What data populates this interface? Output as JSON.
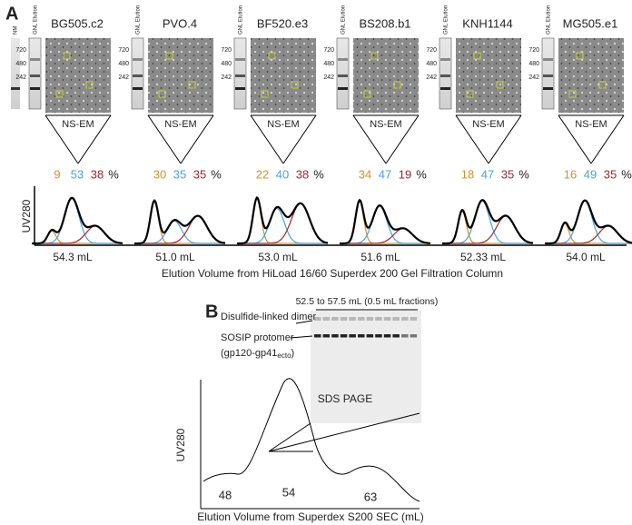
{
  "panel_a": {
    "label": "A",
    "lane_nm": "NM",
    "lane_gnl": "GNL Elution",
    "ladder": [
      "720",
      "480",
      "242"
    ],
    "method": "NS-EM",
    "percent_unit": "%",
    "y_axis": "UV280",
    "x_axis": "Elution Volume from HiLoad 16/60 Superdex 200 Gel Filtration Column",
    "samples": [
      {
        "name": "BG505.c2",
        "fractions": [
          9,
          53,
          38
        ],
        "volume": "54.3 mL"
      },
      {
        "name": "PVO.4",
        "fractions": [
          30,
          35,
          35
        ],
        "volume": "51.0 mL"
      },
      {
        "name": "BF520.e3",
        "fractions": [
          22,
          40,
          38
        ],
        "volume": "53.0 mL"
      },
      {
        "name": "BS208.b1",
        "fractions": [
          34,
          47,
          19
        ],
        "volume": "51.6 mL"
      },
      {
        "name": "KNH1144",
        "fractions": [
          18,
          47,
          35
        ],
        "volume": "52.33 mL"
      },
      {
        "name": "MG505.e1",
        "fractions": [
          16,
          49,
          35
        ],
        "volume": "54.0 mL"
      }
    ]
  },
  "panel_b": {
    "label": "B",
    "fraction_range": "52.5 to 57.5 mL (0.5 mL fractions)",
    "band_dimer": "Disulfide-linked dimer",
    "band_protomer": "SOSIP protomer",
    "subunit": "(gp120-gp41",
    "subunit_sub": "ecto",
    "subunit_close": ")",
    "gel_title": "SDS PAGE",
    "y_axis": "UV280",
    "peaks": [
      48,
      54,
      63
    ],
    "x_axis": "Elution Volume from Superdex S200 SEC (mL)"
  }
}
